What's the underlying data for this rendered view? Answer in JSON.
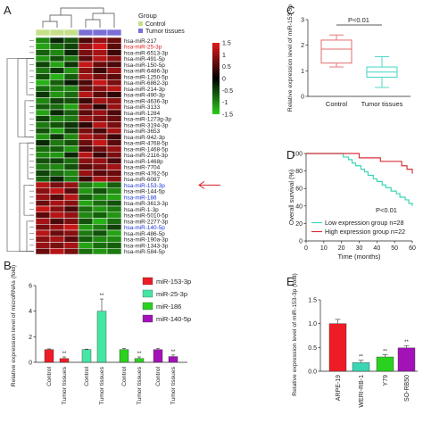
{
  "panel_letters": [
    "A",
    "B",
    "C",
    "D",
    "E"
  ],
  "chart_data": [
    {
      "panel": "A",
      "type": "heatmap",
      "legend_title": "Group",
      "groups": [
        {
          "name": "Control",
          "color": "#c6e08a"
        },
        {
          "name": "Tumor tissues",
          "color": "#7b6ed6"
        }
      ],
      "column_groups": [
        "Control",
        "Control",
        "Control",
        "Tumor tissues",
        "Tumor tissues",
        "Tumor tissues"
      ],
      "colorbar_ticks": [
        1.5,
        1,
        0.5,
        0,
        -0.5,
        -1,
        -1.5
      ],
      "color_range": [
        -1.5,
        1.5
      ],
      "color_scale": {
        "high": "#e31a1c",
        "mid": "#000000",
        "low": "#2ecc1a"
      },
      "highlight_colors": {
        "red": "#e31a1c",
        "blue": "#1a33d6"
      },
      "rows": [
        {
          "label": "hsa-miR-217",
          "values": [
            -1.0,
            -0.3,
            -0.6,
            0.5,
            1.0,
            0.7
          ]
        },
        {
          "label": "hsa-miR-25-3p",
          "values": [
            -1.2,
            -0.8,
            -0.5,
            1.0,
            1.4,
            0.6
          ],
          "highlight": "red"
        },
        {
          "label": "hsa-miR-6513-3p",
          "values": [
            -0.7,
            -1.0,
            -0.3,
            0.8,
            1.1,
            0.4
          ]
        },
        {
          "label": "hsa-miR-491-5p",
          "values": [
            -1.1,
            -0.6,
            -0.9,
            0.6,
            1.2,
            0.9
          ]
        },
        {
          "label": "hsa-miR-150-5p",
          "values": [
            -0.5,
            -1.2,
            -0.4,
            1.3,
            0.7,
            0.5
          ]
        },
        {
          "label": "hsa-miR-6486-3p",
          "values": [
            -0.9,
            -0.4,
            -1.1,
            0.9,
            0.4,
            1.0
          ]
        },
        {
          "label": "hsa-miR-1250-5p",
          "values": [
            -0.6,
            -1.3,
            -0.7,
            1.1,
            0.8,
            0.6
          ]
        },
        {
          "label": "hsa-miR-6862-3p",
          "values": [
            -1.3,
            -0.7,
            -0.2,
            0.5,
            1.3,
            0.8
          ]
        },
        {
          "label": "hsa-miR-214-3p",
          "values": [
            -0.8,
            -0.9,
            -1.0,
            0.7,
            0.9,
            1.2
          ]
        },
        {
          "label": "hsa-miR-490-3p",
          "values": [
            -0.4,
            -1.1,
            -0.8,
            1.2,
            0.6,
            0.3
          ]
        },
        {
          "label": "hsa-miR-4636-3p",
          "values": [
            -1.0,
            -0.5,
            -0.6,
            0.4,
            1.1,
            0.9
          ]
        },
        {
          "label": "hsa-miR-3133",
          "values": [
            -0.7,
            -0.8,
            -1.2,
            0.9,
            0.3,
            1.0
          ]
        },
        {
          "label": "hsa-miR-1284",
          "values": [
            -1.2,
            -0.3,
            -0.7,
            0.6,
            1.0,
            0.5
          ]
        },
        {
          "label": "hsa-miR-1273g-3p",
          "values": [
            -0.5,
            -1.0,
            -0.9,
            1.0,
            0.8,
            0.7
          ]
        },
        {
          "label": "hsa-miR-3194-3p",
          "values": [
            -0.9,
            -0.6,
            -0.4,
            0.3,
            1.2,
            0.8
          ]
        },
        {
          "label": "hsa-miR-3653",
          "values": [
            -0.6,
            -1.2,
            -0.5,
            0.8,
            0.5,
            1.1
          ]
        },
        {
          "label": "hsa-miR-942-3p",
          "values": [
            -1.1,
            -0.4,
            -1.0,
            1.1,
            0.9,
            0.4
          ]
        },
        {
          "label": "hsa-miR-4768-5p",
          "values": [
            -0.3,
            -0.9,
            -0.6,
            0.7,
            1.3,
            0.6
          ]
        },
        {
          "label": "hsa-miR-1468-5p",
          "values": [
            -0.8,
            -0.7,
            -1.1,
            0.5,
            0.7,
            1.0
          ]
        },
        {
          "label": "hsa-miR-2116-3p",
          "values": [
            -1.0,
            -1.1,
            -0.3,
            1.2,
            0.4,
            0.8
          ]
        },
        {
          "label": "hsa-miR-1468p",
          "values": [
            -0.6,
            -0.5,
            -0.8,
            0.9,
            1.0,
            0.5
          ]
        },
        {
          "label": "hsa-miR-7704",
          "values": [
            -0.9,
            -1.0,
            -0.6,
            0.6,
            0.8,
            1.1
          ]
        },
        {
          "label": "hsa-miR-4762-5p",
          "values": [
            -0.5,
            -0.8,
            -1.0,
            1.0,
            0.6,
            0.7
          ]
        },
        {
          "label": "hsa-miR-6087",
          "values": [
            -0.7,
            -0.3,
            -0.9,
            0.4,
            1.1,
            0.9
          ]
        },
        {
          "label": "hsa-miR-153-3p",
          "values": [
            1.2,
            0.8,
            1.0,
            -0.9,
            -1.2,
            -0.7
          ],
          "highlight": "blue"
        },
        {
          "label": "hsa-miR-144-5p",
          "values": [
            0.9,
            1.3,
            0.6,
            -1.1,
            -0.6,
            -1.0
          ]
        },
        {
          "label": "hsa-miR-186",
          "values": [
            1.0,
            0.6,
            1.2,
            -0.7,
            -1.0,
            -1.2
          ],
          "highlight": "blue"
        },
        {
          "label": "hsa-miR-3613-3p",
          "values": [
            0.7,
            1.1,
            0.9,
            -1.2,
            -0.8,
            -0.6
          ]
        },
        {
          "label": "hsa-miR-1-3p",
          "values": [
            1.3,
            0.9,
            0.5,
            -0.8,
            -1.1,
            -0.9
          ]
        },
        {
          "label": "hsa-miR-5010-5p",
          "values": [
            0.6,
            1.2,
            1.0,
            -1.0,
            -0.7,
            -1.1
          ]
        },
        {
          "label": "hsa-miR-2277-3p",
          "values": [
            1.1,
            0.5,
            0.8,
            -0.6,
            -1.3,
            -0.8
          ]
        },
        {
          "label": "hsa-miR-140-5p",
          "values": [
            0.8,
            1.0,
            1.3,
            -1.1,
            -0.9,
            -0.5
          ],
          "highlight": "blue"
        },
        {
          "label": "hsa-miR-486-5p",
          "values": [
            1.2,
            0.7,
            0.9,
            -0.9,
            -0.6,
            -1.2
          ]
        },
        {
          "label": "hsa-miR-190a-3p",
          "values": [
            0.9,
            1.1,
            0.6,
            -0.7,
            -1.0,
            -1.0
          ]
        },
        {
          "label": "hsa-miR-1343-3p",
          "values": [
            1.0,
            0.8,
            1.1,
            -1.2,
            -0.8,
            -0.7
          ]
        },
        {
          "label": "hsa-miR-584-5p",
          "values": [
            0.7,
            1.2,
            0.8,
            -0.8,
            -1.1,
            -0.9
          ]
        }
      ]
    },
    {
      "panel": "B",
      "type": "bar",
      "ylabel": "Relative expression level of microRNAs (fold)",
      "ylim": [
        0,
        6
      ],
      "yticks": [
        0,
        2,
        4,
        6
      ],
      "series": [
        {
          "name": "miR-153-3p",
          "color": "#ee1c24",
          "categories": [
            "Control",
            "Tumor tissues"
          ],
          "values": [
            1.0,
            0.3
          ],
          "errors": [
            0.05,
            0.12
          ],
          "significance": [
            "",
            "**"
          ]
        },
        {
          "name": "miR-25-3p",
          "color": "#44e6a4",
          "categories": [
            "Control",
            "Tumor tissues"
          ],
          "values": [
            1.0,
            4.0
          ],
          "errors": [
            0.03,
            0.95
          ],
          "significance": [
            "",
            "**"
          ]
        },
        {
          "name": "miR-186",
          "color": "#2ad11f",
          "categories": [
            "Control",
            "Tumor tissues"
          ],
          "values": [
            1.0,
            0.3
          ],
          "errors": [
            0.08,
            0.12
          ],
          "significance": [
            "",
            "**"
          ]
        },
        {
          "name": "miR-140-5p",
          "color": "#a312b7",
          "categories": [
            "Control",
            "Tumor tissues"
          ],
          "values": [
            1.0,
            0.45
          ],
          "errors": [
            0.08,
            0.12
          ],
          "significance": [
            "",
            "**"
          ]
        }
      ]
    },
    {
      "panel": "C",
      "type": "box",
      "ylabel": "Relative expression level of miR-153-5p",
      "ylim": [
        0,
        3
      ],
      "yticks": [
        0,
        1,
        2,
        3
      ],
      "categories": [
        "Control",
        "Tumor tissues"
      ],
      "annotation": "P<0.01",
      "boxes": [
        {
          "category": "Control",
          "color": "#e46b6b",
          "min": 1.15,
          "q1": 1.3,
          "median": 1.85,
          "q3": 2.2,
          "max": 2.4
        },
        {
          "category": "Tumor tissues",
          "color": "#40d6c2",
          "min": 0.35,
          "q1": 0.75,
          "median": 0.95,
          "q3": 1.15,
          "max": 1.55
        }
      ]
    },
    {
      "panel": "D",
      "type": "line",
      "xlabel": "Time (months)",
      "ylabel": "Overall survival (%)",
      "xlim": [
        0,
        60
      ],
      "ylim": [
        0,
        100
      ],
      "xticks": [
        0,
        10,
        20,
        30,
        40,
        50,
        60
      ],
      "yticks": [
        0,
        20,
        40,
        60,
        80,
        100
      ],
      "annotation": "P<0.01",
      "series": [
        {
          "name": "Low expression group n=28",
          "color": "#3ad6b4",
          "x": [
            0,
            20,
            21,
            24,
            26,
            28,
            31,
            33,
            35,
            38,
            40,
            43,
            45,
            48,
            51,
            53,
            56,
            58,
            60
          ],
          "y": [
            100,
            100,
            96,
            93,
            89,
            86,
            82,
            79,
            75,
            71,
            68,
            64,
            61,
            57,
            54,
            50,
            47,
            43,
            40
          ]
        },
        {
          "name": "High expression group n=22",
          "color": "#d9323a",
          "x": [
            0,
            26,
            30,
            36,
            42,
            48,
            54,
            57,
            60
          ],
          "y": [
            100,
            100,
            95,
            95,
            91,
            91,
            86,
            82,
            77
          ]
        }
      ]
    },
    {
      "panel": "E",
      "type": "bar",
      "ylabel": "Relative expression level of miR-153-3p (fold)",
      "ylim": [
        0,
        1.5
      ],
      "yticks": [
        0.0,
        0.5,
        1.0,
        1.5
      ],
      "categories": [
        "ARPE-19",
        "WERI-RB-1",
        "Y79",
        "SO-RB50"
      ],
      "values": [
        1.0,
        0.18,
        0.3,
        0.49
      ],
      "errors": [
        0.09,
        0.05,
        0.05,
        0.05
      ],
      "colors": [
        "#ee1c24",
        "#3ad6b4",
        "#2ad11f",
        "#a312b7"
      ],
      "significance": [
        "",
        "**",
        "**",
        "**"
      ]
    }
  ]
}
